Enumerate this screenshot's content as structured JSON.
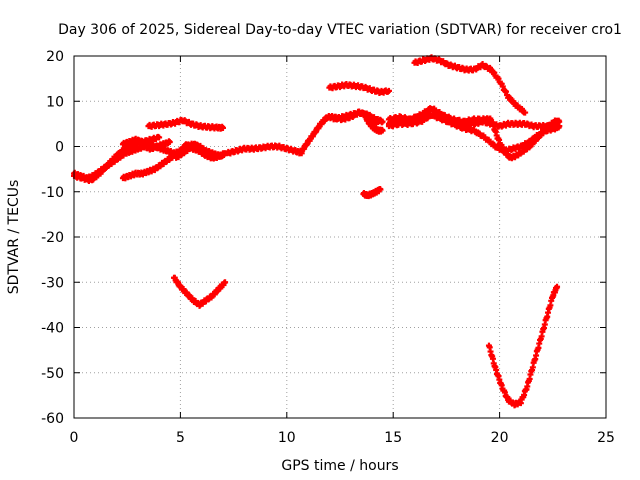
{
  "chart_data": {
    "type": "scatter",
    "title": "Day 306 of 2025, Sidereal Day-to-day VTEC variation (SDTVAR) for receiver cro1",
    "xlabel": "GPS time / hours",
    "ylabel": "SDTVAR / TECUs",
    "xlim": [
      0,
      25
    ],
    "ylim": [
      -60,
      20
    ],
    "xticks": [
      0,
      5,
      10,
      15,
      20,
      25
    ],
    "yticks": [
      -60,
      -50,
      -40,
      -30,
      -20,
      -10,
      0,
      10,
      20
    ],
    "grid": true,
    "marker": "+",
    "color": "#ff0000",
    "series": [
      {
        "x": [
          0,
          0.3,
          0.6,
          0.9,
          1.2,
          1.5,
          1.8,
          2.1,
          2.4,
          2.7,
          3.0,
          3.3,
          3.6,
          3.9,
          4.2,
          4.5
        ],
        "y": [
          -6,
          -6.5,
          -7,
          -6.5,
          -5.5,
          -4.5,
          -3.5,
          -2.5,
          -1.5,
          -1,
          -0.5,
          0,
          -0.5,
          0,
          0.5,
          1
        ]
      },
      {
        "x": [
          0,
          0.4,
          0.8,
          1.2,
          1.6,
          2.0,
          2.4,
          2.8,
          3.2,
          3.6,
          4.0
        ],
        "y": [
          -6.5,
          -7,
          -7.5,
          -6,
          -4,
          -2,
          -0.5,
          0.5,
          1,
          1.5,
          2
        ]
      },
      {
        "x": [
          2.3,
          2.6,
          2.9,
          3.2,
          3.5,
          3.8,
          4.1,
          4.4,
          4.7,
          5.0,
          5.3,
          5.6,
          5.9,
          6.2,
          6.5,
          6.8,
          7.0
        ],
        "y": [
          -7,
          -6.5,
          -6,
          -6,
          -5.5,
          -5,
          -4,
          -3,
          -2,
          -1,
          0,
          0.5,
          0,
          -1,
          -1.5,
          -2,
          -2
        ]
      },
      {
        "x": [
          2.3,
          2.6,
          2.9,
          3.2,
          3.5,
          3.8,
          4.1,
          4.4,
          4.7,
          5.0,
          5.3,
          5.6,
          5.9,
          6.2,
          6.5
        ],
        "y": [
          0.5,
          1,
          1.5,
          1,
          0.5,
          0,
          -0.5,
          -1,
          -1.5,
          -1,
          0.5,
          -0.5,
          -1,
          -2,
          -2.5
        ]
      },
      {
        "x": [
          3.5,
          3.9,
          4.3,
          4.7,
          5.1,
          5.5,
          5.9,
          6.3,
          6.7,
          7.0
        ],
        "y": [
          4.5,
          4.7,
          4.9,
          5.2,
          5.8,
          5.0,
          4.5,
          4.3,
          4.2,
          4.1
        ]
      },
      {
        "x": [
          4.8,
          5.1,
          5.4,
          5.7,
          6.0,
          6.3,
          6.6,
          6.9,
          7.1
        ],
        "y": [
          -2.5,
          -1.5,
          -0.5,
          0.5,
          -1,
          -2,
          -2.5,
          -2,
          -1.5
        ]
      },
      {
        "x": [
          7.2,
          7.6,
          8.0,
          8.4,
          8.8,
          9.2,
          9.6,
          10.0,
          10.4,
          10.7
        ],
        "y": [
          -1.5,
          -1,
          -0.5,
          -0.5,
          -0.3,
          0,
          0,
          -0.5,
          -1,
          -1.5
        ]
      },
      {
        "x": [
          10.7,
          11.0,
          11.3,
          11.6,
          11.9,
          12.2,
          12.6,
          13.0,
          13.4,
          13.8,
          14.2
        ],
        "y": [
          -1,
          1,
          3,
          5,
          6.5,
          6.5,
          6,
          6.5,
          7.5,
          7,
          5
        ]
      },
      {
        "x": [
          12.2,
          12.6,
          13.0,
          13.4,
          13.8,
          14.2,
          14.5
        ],
        "y": [
          6,
          6.5,
          7,
          7.5,
          7,
          6,
          5.5
        ]
      },
      {
        "x": [
          13.7,
          13.9,
          14.1,
          14.3,
          14.5
        ],
        "y": [
          6.5,
          5,
          4,
          3.5,
          3.5
        ]
      },
      {
        "x": [
          12.0,
          12.4,
          12.8,
          13.2,
          13.6,
          14.0,
          14.4,
          14.8
        ],
        "y": [
          13,
          13.3,
          13.6,
          13.4,
          13.1,
          12.5,
          12.0,
          12.3
        ]
      },
      {
        "x": [
          13.6,
          13.8,
          14.0,
          14.2,
          14.4
        ],
        "y": [
          -10.5,
          -10.8,
          -10.5,
          -10,
          -9.5
        ]
      },
      {
        "x": [
          14.8,
          15.2,
          15.6,
          16.0,
          16.4,
          16.8,
          17.2,
          17.6,
          18.0,
          18.4,
          18.8,
          19.2,
          19.6,
          20.0,
          20.4,
          20.8,
          21.2,
          21.6,
          22.0,
          22.4,
          22.8
        ],
        "y": [
          5,
          5.5,
          6,
          6,
          6.5,
          7,
          6.5,
          6,
          5.5,
          5,
          5,
          5.5,
          5,
          4.5,
          5,
          5,
          5,
          4.5,
          4.5,
          4.5,
          4.5
        ]
      },
      {
        "x": [
          14.8,
          15.3,
          15.8,
          16.3,
          16.8,
          17.3,
          17.8,
          18.3,
          18.8,
          19.3,
          19.8,
          20.2,
          20.6,
          21.0,
          21.4,
          21.8,
          22.2,
          22.6,
          22.8
        ],
        "y": [
          4.5,
          5,
          5,
          5.5,
          7,
          6,
          5,
          4,
          3.5,
          2,
          0,
          -1,
          -0.5,
          0,
          1,
          2.5,
          3.5,
          4,
          4.5
        ]
      },
      {
        "x": [
          14.8,
          15.3,
          15.8,
          16.3,
          16.8,
          17.3,
          17.8,
          18.3,
          18.8,
          19.3,
          19.6,
          19.9,
          20.2,
          20.5,
          20.8,
          21.1,
          21.4,
          21.7,
          22.0,
          22.3,
          22.6,
          22.8
        ],
        "y": [
          6,
          6.5,
          6,
          7,
          8.5,
          7,
          6,
          5.5,
          6,
          6,
          6,
          2,
          -1,
          -2.5,
          -2,
          -1,
          0,
          1.5,
          3,
          4.5,
          5.5,
          5.5
        ]
      },
      {
        "x": [
          16.0,
          16.4,
          16.8,
          17.2,
          17.6,
          18.0,
          18.4,
          18.8,
          19.2,
          19.6,
          20.0,
          20.4,
          20.8,
          21.2
        ],
        "y": [
          18.5,
          19,
          19.5,
          19,
          18,
          17.5,
          17,
          17,
          18,
          17,
          14.5,
          11,
          9,
          7.5
        ]
      },
      {
        "x": [
          4.7,
          5.0,
          5.3,
          5.6,
          5.9,
          6.2,
          6.5,
          6.8,
          7.1
        ],
        "y": [
          -29,
          -31,
          -32.5,
          -34,
          -35,
          -34,
          -33,
          -31.5,
          -30
        ]
      },
      {
        "x": [
          19.5,
          19.8,
          20.1,
          20.4,
          20.7,
          21.0,
          21.3,
          21.6,
          21.9,
          22.2,
          22.5,
          22.7
        ],
        "y": [
          -44,
          -49,
          -53,
          -56,
          -57,
          -56.5,
          -53,
          -48,
          -43,
          -38,
          -33,
          -31
        ]
      }
    ]
  }
}
